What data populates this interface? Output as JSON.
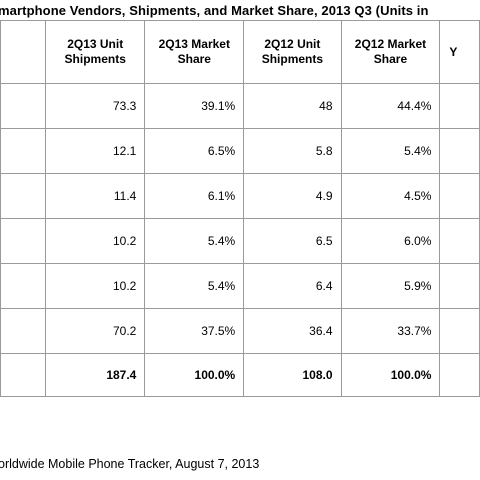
{
  "title": "martphone Vendors, Shipments, and Market Share, 2013 Q3 (Units in",
  "chart_data": {
    "type": "table",
    "title": "martphone Vendors, Shipments, and Market Share, 2013 Q3 (Units in",
    "columns": [
      [
        "",
        ""
      ],
      [
        "2Q13 Unit",
        "Shipments"
      ],
      [
        "2Q13 Market",
        "Share"
      ],
      [
        "2Q12 Unit",
        "Shipments"
      ],
      [
        "2Q12 Market",
        "Share"
      ],
      [
        "Y",
        ""
      ]
    ],
    "rows": [
      [
        "",
        "73.3",
        "39.1%",
        "48",
        "44.4%",
        ""
      ],
      [
        "",
        "12.1",
        "6.5%",
        "5.8",
        "5.4%",
        ""
      ],
      [
        "",
        "11.4",
        "6.1%",
        "4.9",
        "4.5%",
        ""
      ],
      [
        "",
        "10.2",
        "5.4%",
        "6.5",
        "6.0%",
        ""
      ],
      [
        "",
        "10.2",
        "5.4%",
        "6.4",
        "5.9%",
        ""
      ],
      [
        "",
        "70.2",
        "37.5%",
        "36.4",
        "33.7%",
        ""
      ]
    ],
    "total": [
      "",
      "187.4",
      "100.0%",
      "108.0",
      "100.0%",
      ""
    ]
  },
  "source": "orldwide Mobile Phone Tracker, August 7, 2013"
}
